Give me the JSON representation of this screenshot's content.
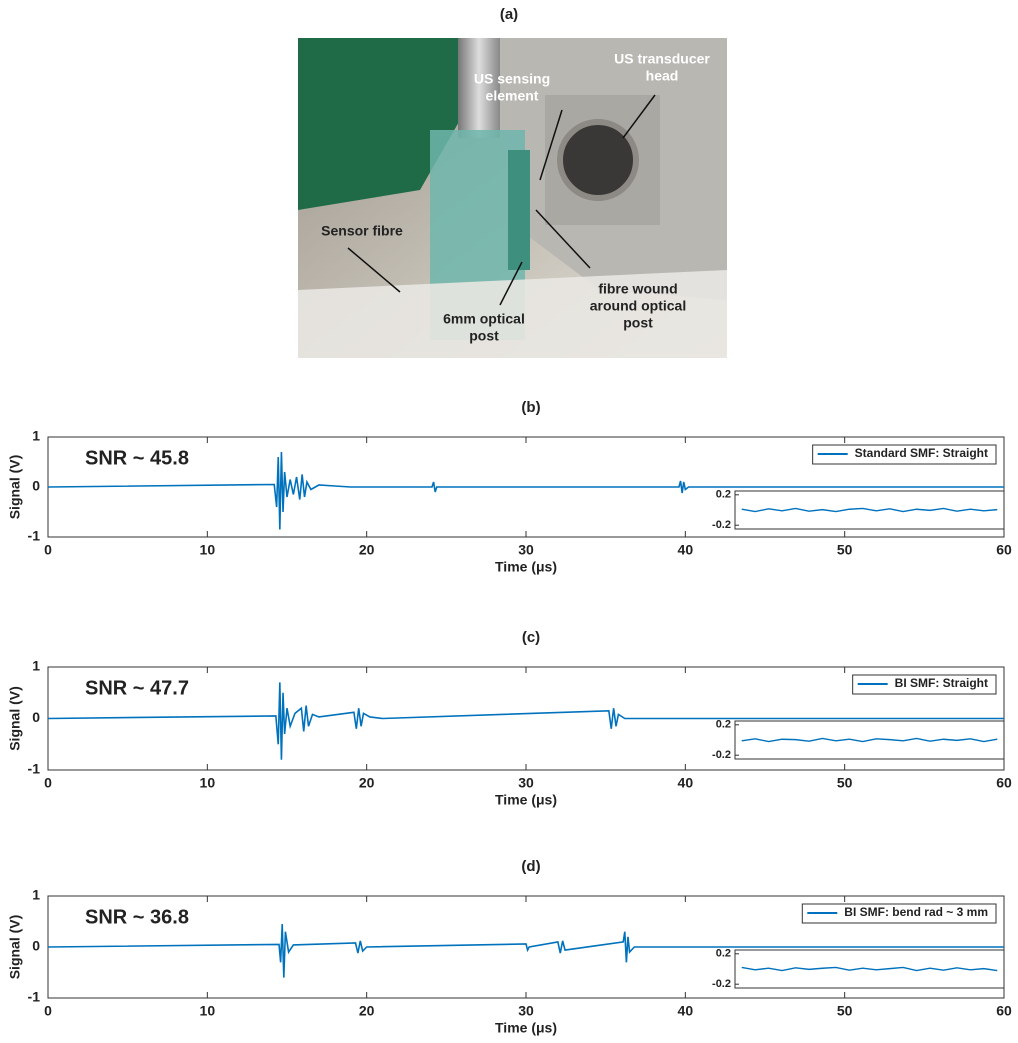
{
  "photo": {
    "label": "(a)",
    "annotations": [
      {
        "lines": [
          "US sensing",
          "element"
        ]
      },
      {
        "lines": [
          "US transducer",
          "head"
        ]
      },
      {
        "lines": [
          "Sensor fibre"
        ]
      },
      {
        "lines": [
          "6mm optical",
          "post"
        ]
      },
      {
        "lines": [
          "fibre wound",
          "around optical",
          "post"
        ]
      }
    ]
  },
  "chart_data": [
    {
      "type": "line",
      "panel_label": "(b)",
      "annotation": "SNR ~ 45.8",
      "xlabel": "Time (μs)",
      "ylabel": "Signal (V)",
      "x": [
        0,
        14.2,
        14.35,
        14.45,
        14.55,
        14.65,
        14.75,
        14.85,
        15.0,
        15.2,
        15.4,
        15.6,
        15.8,
        15.95,
        16.1,
        16.25,
        16.5,
        17,
        18,
        19,
        24.1,
        24.2,
        24.3,
        24.4,
        39.6,
        39.7,
        39.8,
        39.9,
        40.0,
        40.2,
        60
      ],
      "series": [
        {
          "name": "Standard SMF: Straight",
          "color": "#0072bd",
          "values": [
            0,
            0.05,
            -0.4,
            0.6,
            -0.85,
            0.7,
            -0.5,
            0.3,
            -0.2,
            0.15,
            -0.15,
            0.2,
            -0.25,
            0.25,
            -0.2,
            0.1,
            -0.05,
            0.04,
            0.02,
            0,
            0,
            0.1,
            -0.1,
            0,
            0,
            0.12,
            -0.12,
            0.1,
            -0.05,
            0,
            0
          ]
        }
      ],
      "xlim": [
        0,
        60
      ],
      "ylim": [
        -1,
        1
      ],
      "xticks": [
        0,
        10,
        20,
        30,
        40,
        50,
        60
      ],
      "yticks": [
        -1,
        0,
        1
      ],
      "legend": "upper right",
      "inset": {
        "ylim": [
          -0.25,
          0.25
        ],
        "yticks": [
          0.2,
          -0.2
        ],
        "color": "#0072bd",
        "values": [
          0.01,
          -0.02,
          0.015,
          -0.01,
          0.02,
          -0.015,
          0.005,
          -0.02,
          0.01,
          0.02,
          -0.01,
          0.015,
          -0.02,
          0.01,
          -0.005,
          0.02,
          -0.015,
          0.01,
          -0.01,
          0.005
        ]
      }
    },
    {
      "type": "line",
      "panel_label": "(c)",
      "annotation": "SNR ~ 47.7",
      "xlabel": "Time (μs)",
      "ylabel": "Signal (V)",
      "x": [
        0,
        14.3,
        14.45,
        14.55,
        14.65,
        14.75,
        14.85,
        15.0,
        15.2,
        15.5,
        15.9,
        16.05,
        16.2,
        16.35,
        16.6,
        17,
        19.2,
        19.35,
        19.5,
        19.65,
        19.8,
        20.2,
        21,
        35.2,
        35.35,
        35.5,
        35.65,
        35.8,
        36.2,
        60
      ],
      "series": [
        {
          "name": "BI SMF: Straight",
          "color": "#0072bd",
          "values": [
            0,
            0.05,
            -0.5,
            0.7,
            -0.8,
            0.5,
            -0.3,
            0.2,
            -0.15,
            0.1,
            0.2,
            -0.25,
            0.25,
            -0.15,
            0.08,
            0.03,
            0.12,
            -0.2,
            0.2,
            -0.15,
            0.1,
            0.03,
            0,
            0.15,
            -0.2,
            0.2,
            -0.15,
            0.08,
            0,
            0
          ]
        }
      ],
      "xlim": [
        0,
        60
      ],
      "ylim": [
        -1,
        1
      ],
      "xticks": [
        0,
        10,
        20,
        30,
        40,
        50,
        60
      ],
      "yticks": [
        -1,
        0,
        1
      ],
      "legend": "upper right",
      "inset": {
        "ylim": [
          -0.25,
          0.25
        ],
        "yticks": [
          0.2,
          -0.2
        ],
        "color": "#0072bd",
        "values": [
          -0.01,
          0.015,
          -0.02,
          0.01,
          0.005,
          -0.015,
          0.02,
          -0.01,
          0.01,
          -0.02,
          0.015,
          0.005,
          -0.01,
          0.02,
          -0.015,
          0.01,
          -0.005,
          0.015,
          -0.02,
          0.01
        ]
      }
    },
    {
      "type": "line",
      "panel_label": "(d)",
      "annotation": "SNR ~ 36.8",
      "xlabel": "Time (μs)",
      "ylabel": "Signal (V)",
      "x": [
        0,
        14.5,
        14.6,
        14.7,
        14.8,
        14.9,
        15.1,
        15.4,
        19.3,
        19.45,
        19.6,
        19.75,
        20,
        30.0,
        30.1,
        30.2,
        32.0,
        32.15,
        32.3,
        32.45,
        36.1,
        36.2,
        36.3,
        36.4,
        36.5,
        36.8,
        60
      ],
      "series": [
        {
          "name": "BI SMF: bend rad ~ 3 mm",
          "color": "#0072bd",
          "values": [
            0,
            0.05,
            -0.3,
            0.45,
            -0.6,
            0.3,
            -0.1,
            0.04,
            0.08,
            -0.12,
            0.12,
            -0.08,
            0,
            0.06,
            -0.06,
            0,
            0.1,
            -0.12,
            0.12,
            -0.06,
            0.1,
            0.3,
            -0.3,
            0.2,
            -0.1,
            0,
            0
          ]
        }
      ],
      "xlim": [
        0,
        60
      ],
      "ylim": [
        -1,
        1
      ],
      "xticks": [
        0,
        10,
        20,
        30,
        40,
        50,
        60
      ],
      "yticks": [
        -1,
        0,
        1
      ],
      "legend": "upper right",
      "inset": {
        "ylim": [
          -0.25,
          0.25
        ],
        "yticks": [
          0.2,
          -0.2
        ],
        "color": "#0072bd",
        "values": [
          0.02,
          -0.01,
          0.01,
          -0.02,
          0.015,
          -0.005,
          0.01,
          0.02,
          -0.015,
          0.01,
          -0.01,
          0.005,
          0.02,
          -0.02,
          0.01,
          -0.015,
          0.015,
          -0.01,
          0.005,
          -0.02
        ]
      }
    }
  ]
}
